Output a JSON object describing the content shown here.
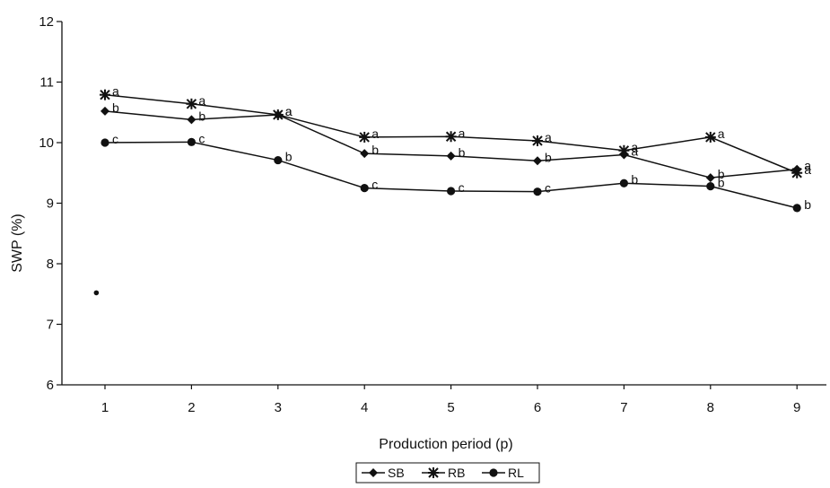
{
  "chart_data": {
    "type": "line",
    "xlabel": "Production period (p)",
    "ylabel": "SWP (%)",
    "ylim": [
      6,
      12
    ],
    "yticks": [
      6,
      7,
      8,
      9,
      10,
      11,
      12
    ],
    "x": [
      1,
      2,
      3,
      4,
      5,
      6,
      7,
      8,
      9
    ],
    "grid": false,
    "legend_position": "bottom-center",
    "stray_point": {
      "x": 0.9,
      "y": 7.52
    },
    "series": [
      {
        "name": "SB",
        "marker": "diamond",
        "values": [
          10.52,
          10.38,
          10.46,
          9.82,
          9.78,
          9.7,
          9.8,
          9.42,
          9.56
        ],
        "labels": [
          "b",
          "b",
          "a",
          "b",
          "b",
          "b",
          "a",
          "b",
          "a"
        ]
      },
      {
        "name": "RB",
        "marker": "star",
        "values": [
          10.79,
          10.64,
          10.46,
          10.09,
          10.1,
          10.03,
          9.87,
          10.09,
          9.5
        ],
        "labels": [
          "a",
          "a",
          "a",
          "a",
          "a",
          "a",
          "a",
          "a",
          "a"
        ]
      },
      {
        "name": "RL",
        "marker": "circle",
        "values": [
          10.0,
          10.01,
          9.71,
          9.25,
          9.2,
          9.19,
          9.33,
          9.28,
          8.92
        ],
        "labels": [
          "c",
          "c",
          "b",
          "c",
          "c",
          "c",
          "b",
          "b",
          "b"
        ]
      }
    ]
  }
}
